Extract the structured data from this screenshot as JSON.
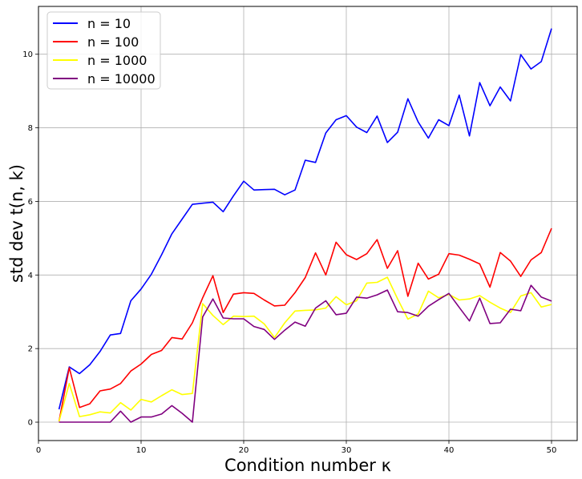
{
  "chart_data": {
    "type": "line",
    "xlabel": "Condition number κ",
    "ylabel": "std dev t(n, k)",
    "xlim": [
      0,
      52.5
    ],
    "ylim": [
      -0.5,
      11.3
    ],
    "xticks": [
      0,
      10,
      20,
      30,
      40,
      50
    ],
    "yticks": [
      0,
      2,
      4,
      6,
      8,
      10
    ],
    "grid": true,
    "legend_position": "upper-left",
    "x": [
      2,
      3,
      4,
      5,
      6,
      7,
      8,
      9,
      10,
      11,
      12,
      13,
      14,
      15,
      16,
      17,
      18,
      19,
      20,
      21,
      22,
      23,
      24,
      25,
      26,
      27,
      28,
      29,
      30,
      31,
      32,
      33,
      34,
      35,
      36,
      37,
      38,
      39,
      40,
      41,
      42,
      43,
      44,
      45,
      46,
      47,
      48,
      49,
      50
    ],
    "series": [
      {
        "name": "n = 10",
        "color": "#0000ff",
        "values": [
          0.35,
          1.5,
          1.32,
          1.56,
          1.92,
          2.37,
          2.41,
          3.3,
          3.62,
          4.02,
          4.55,
          5.12,
          5.52,
          5.92,
          5.95,
          5.98,
          5.72,
          6.15,
          6.55,
          6.31,
          6.32,
          6.33,
          6.18,
          6.31,
          7.12,
          7.06,
          7.86,
          8.22,
          8.33,
          8.02,
          7.87,
          8.32,
          7.6,
          7.88,
          8.79,
          8.16,
          7.72,
          8.22,
          8.06,
          8.89,
          7.78,
          9.23,
          8.6,
          9.11,
          8.73,
          9.99,
          9.6,
          9.8,
          10.7
        ]
      },
      {
        "name": "n = 100",
        "color": "#ff0000",
        "values": [
          0.02,
          1.48,
          0.4,
          0.5,
          0.85,
          0.9,
          1.05,
          1.39,
          1.58,
          1.84,
          1.95,
          2.3,
          2.26,
          2.7,
          3.38,
          3.98,
          2.98,
          3.48,
          3.52,
          3.5,
          3.32,
          3.16,
          3.18,
          3.52,
          3.93,
          4.6,
          4.0,
          4.89,
          4.55,
          4.42,
          4.58,
          4.96,
          4.18,
          4.66,
          3.42,
          4.32,
          3.89,
          4.02,
          4.58,
          4.54,
          4.43,
          4.3,
          3.67,
          4.61,
          4.38,
          3.96,
          4.41,
          4.61,
          5.27
        ]
      },
      {
        "name": "n = 1000",
        "color": "#ffff00",
        "values": [
          0.02,
          1.05,
          0.15,
          0.2,
          0.28,
          0.25,
          0.53,
          0.33,
          0.62,
          0.55,
          0.72,
          0.88,
          0.75,
          0.78,
          3.22,
          2.9,
          2.65,
          2.88,
          2.87,
          2.88,
          2.67,
          2.3,
          2.7,
          3.02,
          3.04,
          3.05,
          3.1,
          3.41,
          3.19,
          3.3,
          3.78,
          3.8,
          3.94,
          3.35,
          2.8,
          2.94,
          3.56,
          3.38,
          3.47,
          3.32,
          3.35,
          3.44,
          3.26,
          3.1,
          2.98,
          3.43,
          3.52,
          3.13,
          3.2
        ]
      },
      {
        "name": "n = 10000",
        "color": "#800080",
        "values": [
          0.0,
          0.0,
          0.0,
          0.0,
          0.0,
          0.0,
          0.3,
          0.0,
          0.14,
          0.14,
          0.22,
          0.45,
          0.24,
          0.0,
          2.86,
          3.35,
          2.83,
          2.81,
          2.81,
          2.6,
          2.52,
          2.25,
          2.5,
          2.72,
          2.61,
          3.1,
          3.3,
          2.92,
          2.96,
          3.4,
          3.37,
          3.46,
          3.59,
          3.0,
          2.98,
          2.88,
          3.15,
          3.33,
          3.5,
          3.12,
          2.75,
          3.37,
          2.68,
          2.7,
          3.07,
          3.03,
          3.72,
          3.4,
          3.29
        ]
      }
    ]
  }
}
